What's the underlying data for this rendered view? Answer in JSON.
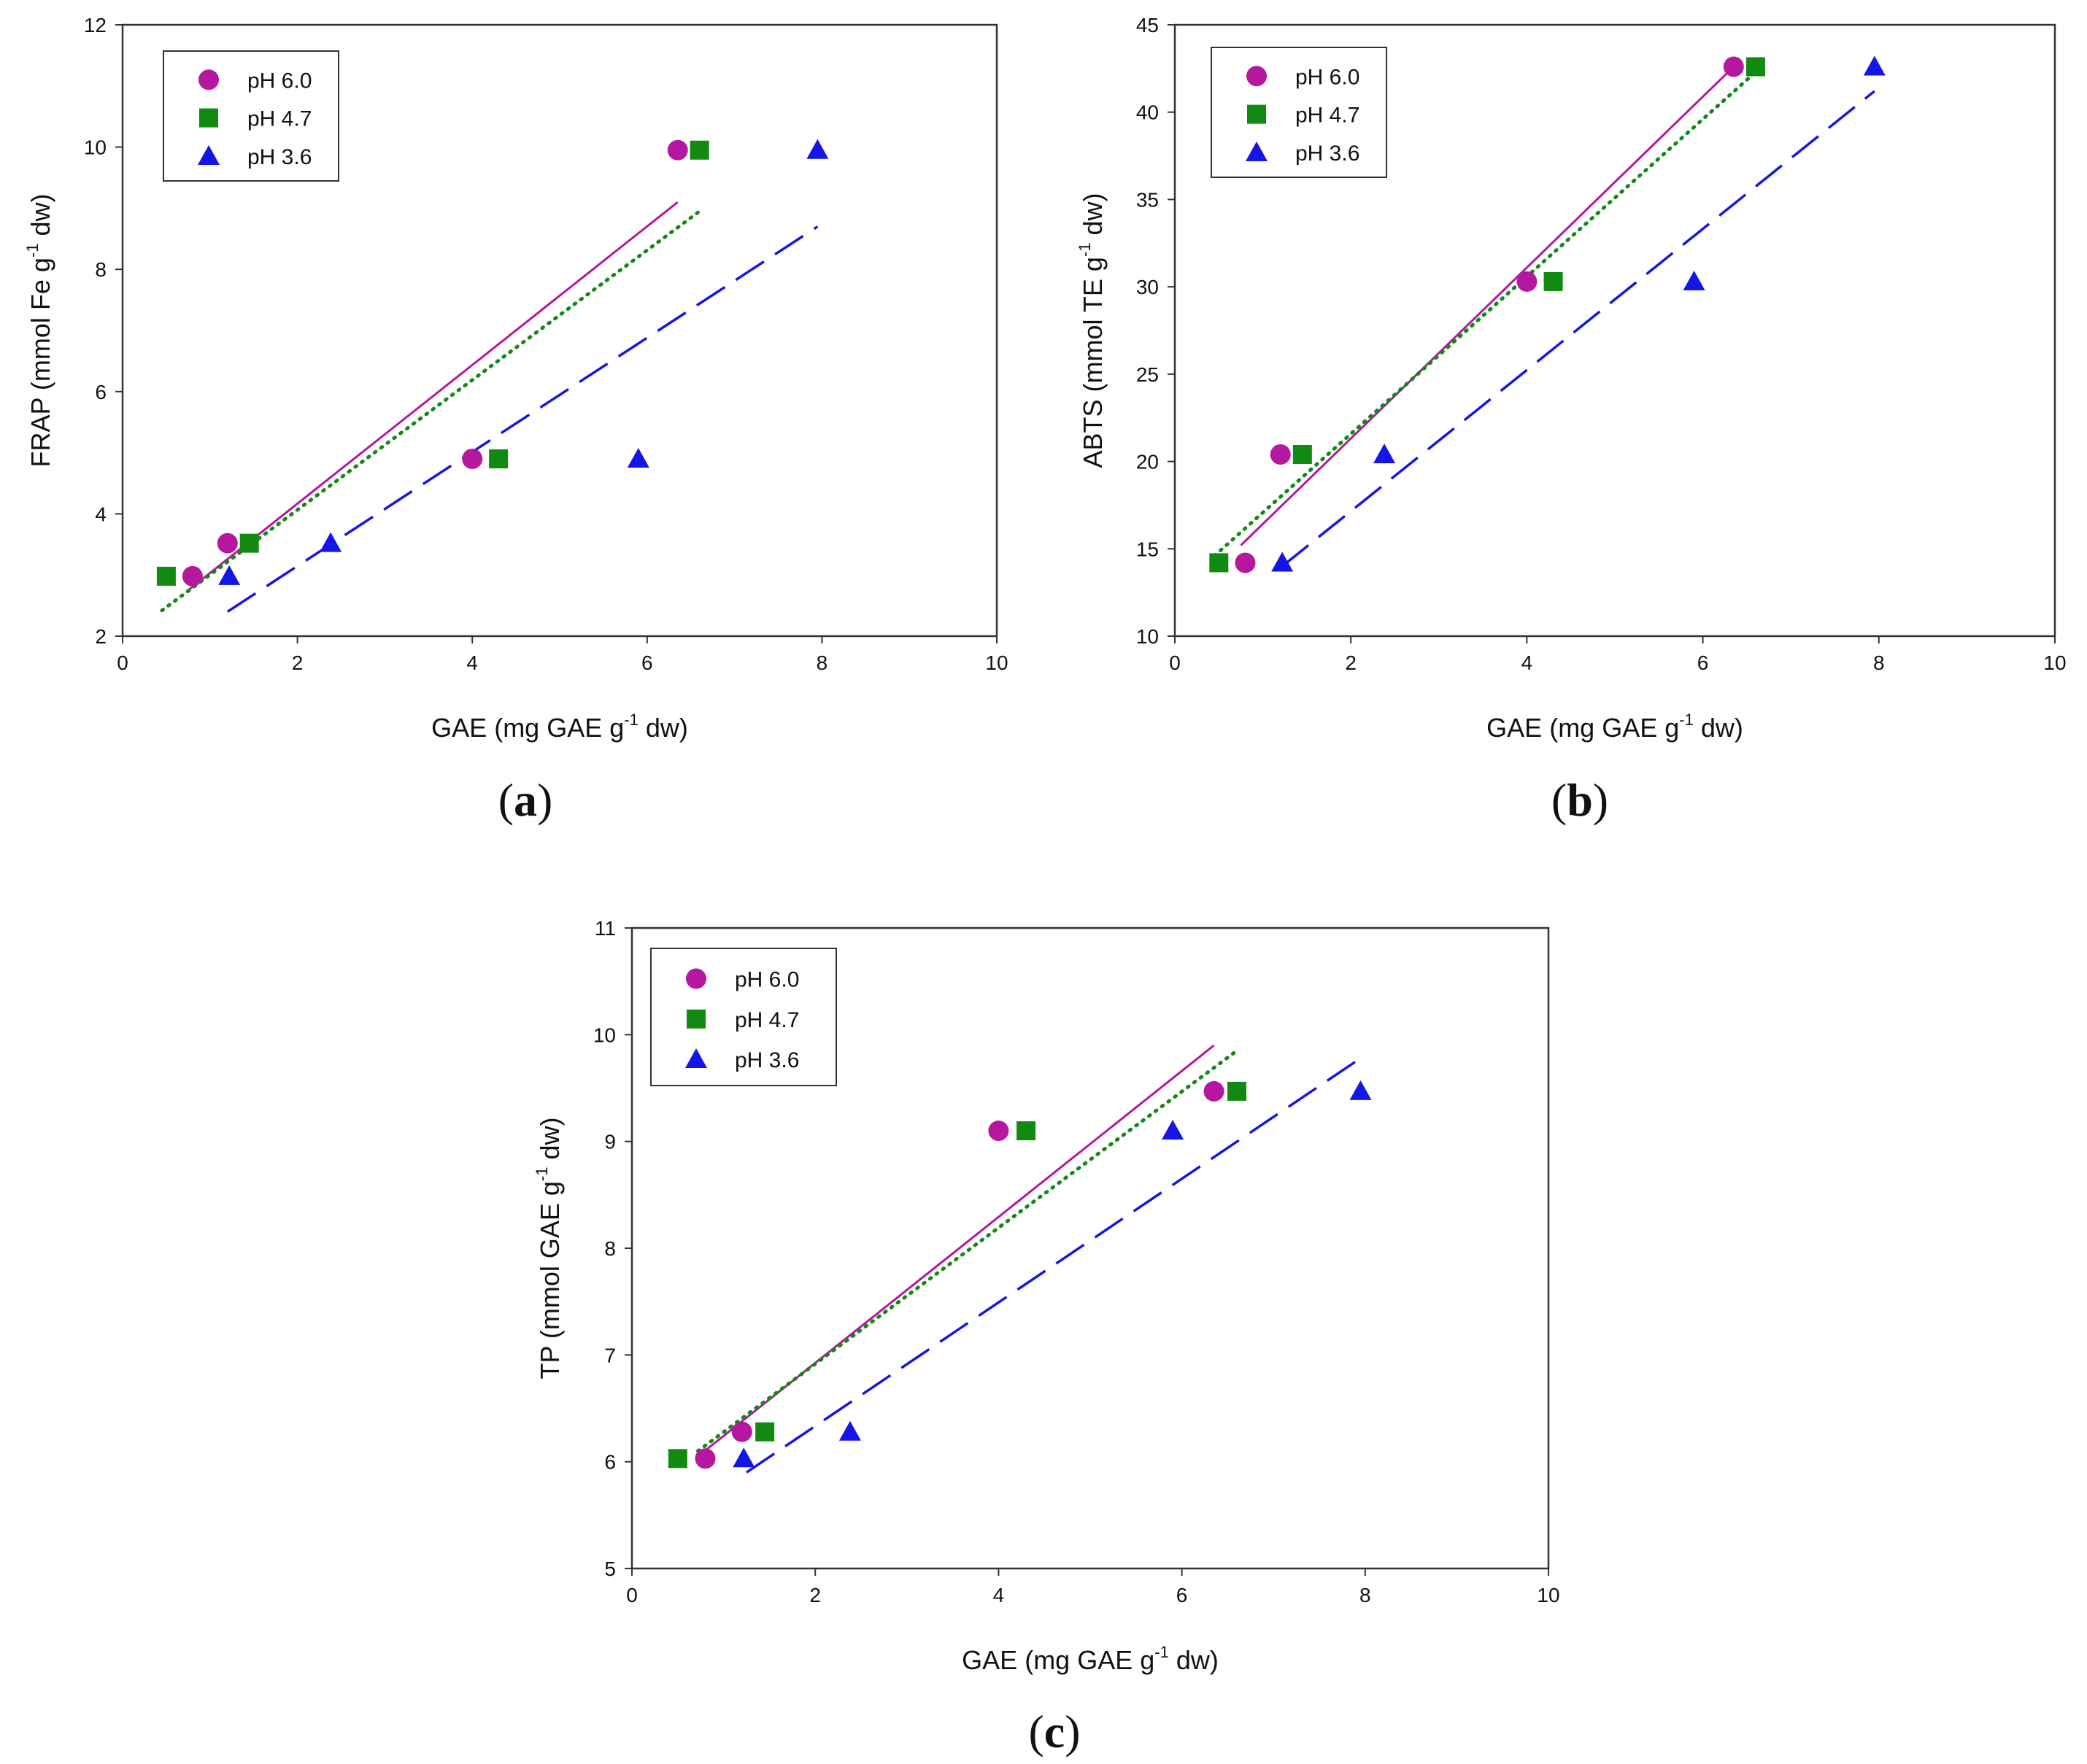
{
  "figure": {
    "panel_labels": [
      {
        "open": "(",
        "letter": "a",
        "close": ")"
      },
      {
        "open": "(",
        "letter": "b",
        "close": ")"
      },
      {
        "open": "(",
        "letter": "c",
        "close": ")"
      }
    ]
  },
  "colors": {
    "ph60": "#b5179e",
    "ph47": "#128a12",
    "ph36": "#1515e6",
    "axis": "#333333"
  },
  "chart_data": [
    {
      "type": "scatter",
      "panel": "a",
      "xlabel": {
        "pre": "GAE (mg GAE g",
        "sup": "-1",
        "post": " dw)"
      },
      "ylabel": {
        "pre": "FRAP (mmol Fe g",
        "sup": "-1",
        "post": " dw)"
      },
      "xlim": [
        0,
        10
      ],
      "ylim": [
        2,
        12
      ],
      "xticks": [
        0,
        2,
        4,
        6,
        8,
        10
      ],
      "yticks": [
        2,
        4,
        6,
        8,
        10,
        12
      ],
      "legend": "top-left",
      "series": [
        {
          "name": "pH 6.0",
          "marker": "circle",
          "points": [
            [
              0.8,
              2.98
            ],
            [
              1.2,
              3.52
            ],
            [
              4.0,
              4.9
            ],
            [
              6.35,
              9.95
            ]
          ],
          "fit": {
            "style": "solid",
            "x1": 0.75,
            "y1": 2.75,
            "x2": 6.35,
            "y2": 9.1
          }
        },
        {
          "name": "pH 4.7",
          "marker": "square",
          "points": [
            [
              0.5,
              2.98
            ],
            [
              1.45,
              3.52
            ],
            [
              4.3,
              4.9
            ],
            [
              6.6,
              9.95
            ]
          ],
          "fit": {
            "style": "dotted",
            "x1": 0.45,
            "y1": 2.42,
            "x2": 6.6,
            "y2": 8.95
          }
        },
        {
          "name": "pH 3.6",
          "marker": "triangle",
          "points": [
            [
              1.22,
              2.98
            ],
            [
              2.38,
              3.52
            ],
            [
              5.9,
              4.9
            ],
            [
              7.95,
              9.95
            ]
          ],
          "fit": {
            "style": "dashed",
            "x1": 1.2,
            "y1": 2.4,
            "x2": 7.95,
            "y2": 8.7
          }
        }
      ]
    },
    {
      "type": "scatter",
      "panel": "b",
      "xlabel": {
        "pre": "GAE (mg GAE g",
        "sup": "-1",
        "post": " dw)"
      },
      "ylabel": {
        "pre": "ABTS (mmol TE g",
        "sup": "-1",
        "post": " dw)"
      },
      "xlim": [
        0,
        10
      ],
      "ylim": [
        10,
        45
      ],
      "xticks": [
        0,
        2,
        4,
        6,
        8,
        10
      ],
      "yticks": [
        10,
        15,
        20,
        25,
        30,
        35,
        40,
        45
      ],
      "legend": "top-left",
      "series": [
        {
          "name": "pH 6.0",
          "marker": "circle",
          "points": [
            [
              0.8,
              14.2
            ],
            [
              1.2,
              20.4
            ],
            [
              4.0,
              30.3
            ],
            [
              6.35,
              42.6
            ]
          ],
          "fit": {
            "style": "solid",
            "x1": 0.75,
            "y1": 15.2,
            "x2": 6.35,
            "y2": 42.6
          }
        },
        {
          "name": "pH 4.7",
          "marker": "square",
          "points": [
            [
              0.5,
              14.2
            ],
            [
              1.45,
              20.4
            ],
            [
              4.3,
              30.3
            ],
            [
              6.6,
              42.6
            ]
          ],
          "fit": {
            "style": "dotted",
            "x1": 0.45,
            "y1": 14.6,
            "x2": 6.6,
            "y2": 42.3
          }
        },
        {
          "name": "pH 3.6",
          "marker": "triangle",
          "points": [
            [
              1.22,
              14.2
            ],
            [
              2.38,
              20.4
            ],
            [
              5.9,
              30.3
            ],
            [
              7.95,
              42.6
            ]
          ],
          "fit": {
            "style": "dashed",
            "x1": 1.22,
            "y1": 14.0,
            "x2": 7.95,
            "y2": 41.2
          }
        }
      ]
    },
    {
      "type": "scatter",
      "panel": "c",
      "xlabel": {
        "pre": "GAE (mg GAE g",
        "sup": "-1",
        "post": " dw)"
      },
      "ylabel": {
        "pre": "TP (mmol GAE g",
        "sup": "-1",
        "post": " dw)"
      },
      "xlim": [
        0,
        10
      ],
      "ylim": [
        5,
        11
      ],
      "xticks": [
        0,
        2,
        4,
        6,
        8,
        10
      ],
      "yticks": [
        5,
        6,
        7,
        8,
        9,
        10,
        11
      ],
      "legend": "top-left",
      "series": [
        {
          "name": "pH 6.0",
          "marker": "circle",
          "points": [
            [
              0.8,
              6.03
            ],
            [
              1.2,
              6.28
            ],
            [
              4.0,
              9.1
            ],
            [
              6.35,
              9.47
            ]
          ],
          "fit": {
            "style": "solid",
            "x1": 0.72,
            "y1": 6.05,
            "x2": 6.35,
            "y2": 9.9
          }
        },
        {
          "name": "pH 4.7",
          "marker": "square",
          "points": [
            [
              0.5,
              6.03
            ],
            [
              1.45,
              6.28
            ],
            [
              4.3,
              9.1
            ],
            [
              6.6,
              9.47
            ]
          ],
          "fit": {
            "style": "dotted",
            "x1": 0.72,
            "y1": 6.1,
            "x2": 6.6,
            "y2": 9.85
          }
        },
        {
          "name": "pH 3.6",
          "marker": "triangle",
          "points": [
            [
              1.22,
              6.03
            ],
            [
              2.38,
              6.28
            ],
            [
              5.9,
              9.1
            ],
            [
              7.95,
              9.47
            ]
          ],
          "fit": {
            "style": "dashed",
            "x1": 1.25,
            "y1": 5.9,
            "x2": 7.95,
            "y2": 9.78
          }
        }
      ]
    }
  ]
}
